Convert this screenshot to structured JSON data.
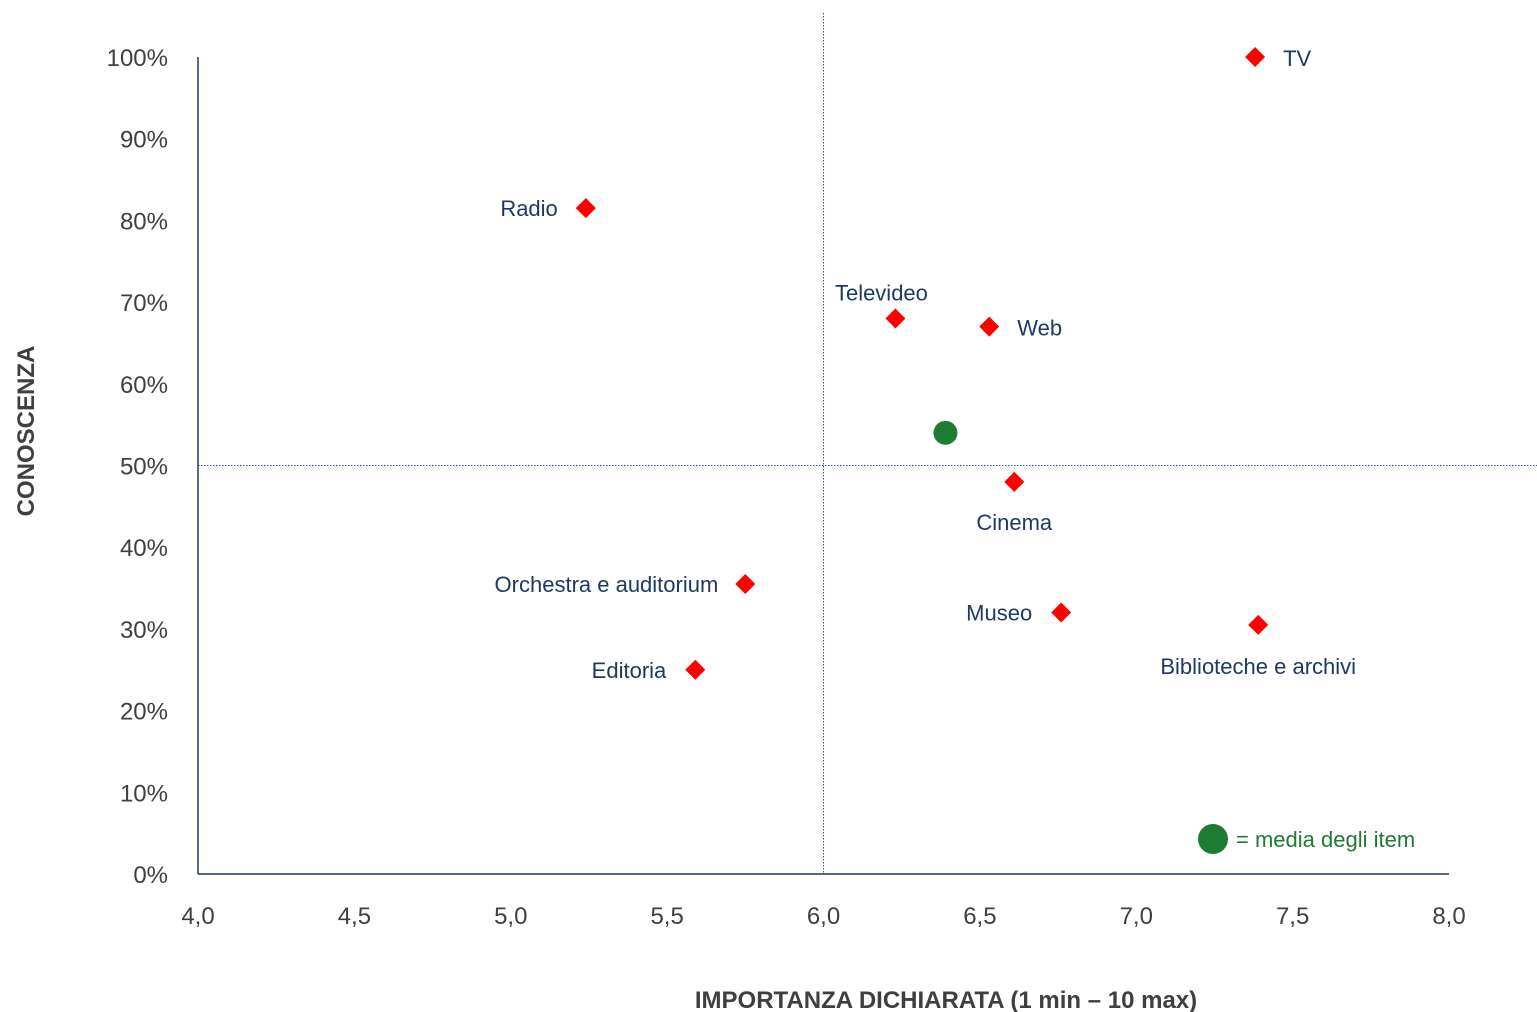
{
  "chart_data": {
    "type": "scatter",
    "xlabel": "IMPORTANZA DICHIARATA (1 min – 10 max)",
    "ylabel": "CONOSCENZA",
    "xlim": [
      4.0,
      8.0
    ],
    "ylim": [
      0,
      100
    ],
    "x_ticks": [
      "4,0",
      "4,5",
      "5,0",
      "5,5",
      "6,0",
      "6,5",
      "7,0",
      "7,5",
      "8,0"
    ],
    "y_ticks": [
      "0%",
      "10%",
      "20%",
      "30%",
      "40%",
      "50%",
      "60%",
      "70%",
      "80%",
      "90%",
      "100%"
    ],
    "reference_lines": {
      "x": 6.0,
      "y": 50
    },
    "series": [
      {
        "marker": "diamond",
        "color": "#ff0000",
        "points": [
          {
            "label": "TV",
            "x": 7.38,
            "y": 100
          },
          {
            "label": "Radio",
            "x": 5.24,
            "y": 81.5
          },
          {
            "label": "Televideo",
            "x": 6.23,
            "y": 68
          },
          {
            "label": "Web",
            "x": 6.53,
            "y": 67
          },
          {
            "label": "Cinema",
            "x": 6.61,
            "y": 48
          },
          {
            "label": "Orchestra e auditorium",
            "x": 5.75,
            "y": 35.5
          },
          {
            "label": "Museo",
            "x": 6.76,
            "y": 32
          },
          {
            "label": "Biblioteche e archivi",
            "x": 7.39,
            "y": 30.5
          },
          {
            "label": "Editoria",
            "x": 5.59,
            "y": 25
          }
        ]
      },
      {
        "marker": "circle",
        "color": "#1e7b34",
        "points": [
          {
            "x": 6.39,
            "y": 54
          }
        ]
      }
    ],
    "legend": {
      "text": "= media degli item",
      "color": "#1e7b34",
      "position": "bottom-right"
    }
  }
}
